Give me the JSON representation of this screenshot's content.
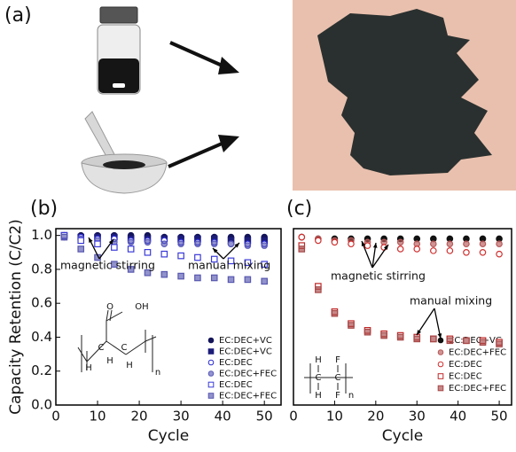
{
  "panels": {
    "a": "(a)",
    "b": "(b)",
    "c": "(c)"
  },
  "chart_data": [
    {
      "type": "scatter",
      "x_label": "Cycle",
      "y_label": "Capacity Retention (C/C2)",
      "x": [
        2,
        6,
        10,
        14,
        18,
        22,
        26,
        30,
        34,
        38,
        42,
        46,
        50
      ],
      "xlim": [
        0,
        54
      ],
      "ylim": [
        0,
        1.04
      ],
      "xticks": [
        0,
        10,
        20,
        30,
        40,
        50
      ],
      "yticks": [
        {
          "value": 0,
          "label": "0.0"
        },
        {
          "value": 0.2,
          "label": "0.2"
        },
        {
          "value": 0.4,
          "label": "0.4"
        },
        {
          "value": 0.6,
          "label": "0.6"
        },
        {
          "value": 0.8,
          "label": "0.8"
        },
        {
          "value": 1,
          "label": "1.0"
        }
      ],
      "annotations": [
        "magnetic stirring",
        "manual mixing"
      ],
      "structure_labels": [
        "O",
        "OH",
        "C",
        "C",
        "H",
        "H",
        "H",
        "n"
      ],
      "series": [
        {
          "name": "EC:DEC+VC",
          "color": "#14145a",
          "marker": "circle",
          "fill": "full",
          "values": [
            1.0,
            1.0,
            1.0,
            1.0,
            1.0,
            1.0,
            0.99,
            0.99,
            0.99,
            0.99,
            0.99,
            0.99,
            0.99
          ]
        },
        {
          "name": "EC:DEC+VC",
          "color": "#1c1c7a",
          "marker": "square",
          "fill": "full",
          "values": [
            1.0,
            0.99,
            0.99,
            0.99,
            0.98,
            0.98,
            0.98,
            0.98,
            0.98,
            0.98,
            0.97,
            0.97,
            0.97
          ]
        },
        {
          "name": "EC:DEC",
          "color": "#2a2ad0",
          "marker": "circle",
          "fill": "none",
          "values": [
            1.0,
            0.99,
            0.98,
            0.98,
            0.97,
            0.97,
            0.97,
            0.96,
            0.96,
            0.96,
            0.95,
            0.95,
            0.95
          ]
        },
        {
          "name": "EC:DEC+FEC",
          "color": "#5a5ab8",
          "marker": "circle",
          "fill": "light",
          "values": [
            0.99,
            0.98,
            0.97,
            0.96,
            0.96,
            0.96,
            0.95,
            0.95,
            0.95,
            0.95,
            0.95,
            0.94,
            0.94
          ]
        },
        {
          "name": "EC:DEC",
          "color": "#3a3ad8",
          "marker": "square",
          "fill": "none",
          "values": [
            1.0,
            0.97,
            0.95,
            0.93,
            0.92,
            0.9,
            0.89,
            0.88,
            0.87,
            0.86,
            0.85,
            0.84,
            0.83
          ]
        },
        {
          "name": "EC:DEC+FEC",
          "color": "#5858b0",
          "marker": "square",
          "fill": "light",
          "values": [
            0.99,
            0.92,
            0.87,
            0.83,
            0.8,
            0.78,
            0.77,
            0.76,
            0.75,
            0.75,
            0.74,
            0.74,
            0.73
          ]
        }
      ]
    },
    {
      "type": "scatter",
      "x_label": "Cycle",
      "x": [
        2,
        6,
        10,
        14,
        18,
        22,
        26,
        30,
        34,
        38,
        42,
        46,
        50
      ],
      "xlim": [
        0,
        53
      ],
      "ylim": [
        0,
        1.04
      ],
      "xticks": [
        0,
        10,
        20,
        30,
        40,
        50
      ],
      "annotations": [
        "magnetic stirring",
        "manual mixing"
      ],
      "structure_labels": [
        "H",
        "F",
        "C",
        "C",
        "H",
        "F",
        "n"
      ],
      "series": [
        {
          "name": "EC:DEC+VC",
          "color": "#111111",
          "marker": "circle",
          "fill": "full",
          "values": [
            0.99,
            0.98,
            0.98,
            0.98,
            0.98,
            0.98,
            0.98,
            0.98,
            0.98,
            0.98,
            0.98,
            0.98,
            0.98
          ]
        },
        {
          "name": "EC:DEC+FEC",
          "color": "#b85a5a",
          "marker": "circle",
          "fill": "light",
          "values": [
            0.99,
            0.98,
            0.97,
            0.97,
            0.96,
            0.96,
            0.96,
            0.95,
            0.95,
            0.95,
            0.95,
            0.95,
            0.95
          ]
        },
        {
          "name": "EC:DEC",
          "color": "#d03030",
          "marker": "circle",
          "fill": "none",
          "values": [
            0.99,
            0.97,
            0.96,
            0.95,
            0.94,
            0.93,
            0.92,
            0.92,
            0.91,
            0.91,
            0.9,
            0.9,
            0.89
          ]
        },
        {
          "name": "EC:DEC",
          "color": "#c02828",
          "marker": "square",
          "fill": "none",
          "values": [
            0.94,
            0.7,
            0.55,
            0.48,
            0.44,
            0.42,
            0.41,
            0.4,
            0.39,
            0.39,
            0.38,
            0.38,
            0.37
          ]
        },
        {
          "name": "EC:DEC+FEC",
          "color": "#a84848",
          "marker": "square",
          "fill": "light",
          "values": [
            0.92,
            0.68,
            0.54,
            0.47,
            0.43,
            0.41,
            0.4,
            0.39,
            0.39,
            0.38,
            0.38,
            0.37,
            0.36
          ]
        }
      ]
    }
  ]
}
